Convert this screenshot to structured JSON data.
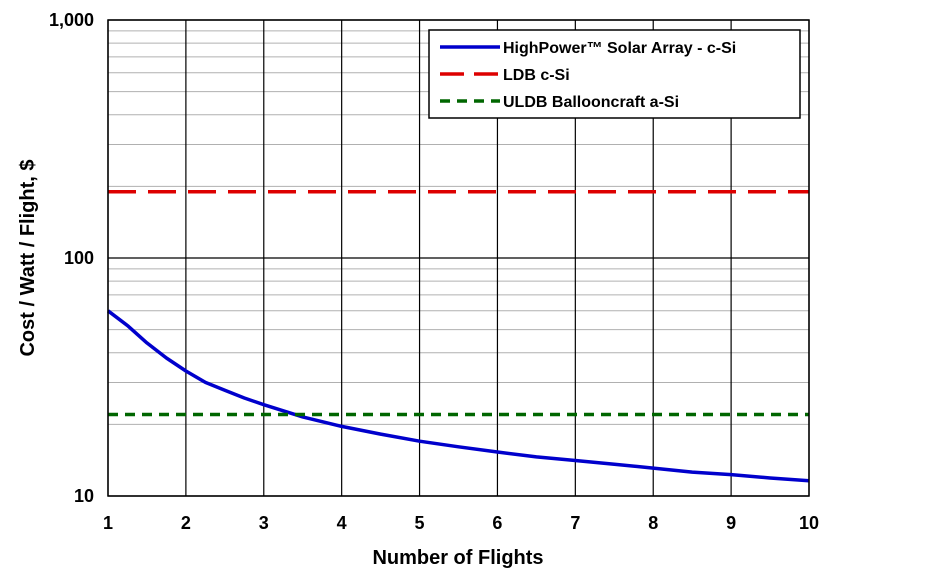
{
  "chart_data": {
    "type": "line",
    "xlabel": "Number of Flights",
    "ylabel": "Cost / Watt / Flight, $",
    "xlim": [
      1,
      10
    ],
    "ylim": [
      10,
      1000
    ],
    "yscale": "log",
    "grid": true,
    "legend_position": "top-right",
    "x_ticks": [
      1,
      2,
      3,
      4,
      5,
      6,
      7,
      8,
      9,
      10
    ],
    "x_tick_labels": [
      "1",
      "2",
      "3",
      "4",
      "5",
      "6",
      "7",
      "8",
      "9",
      "10"
    ],
    "y_ticks": [
      10,
      100,
      1000
    ],
    "y_tick_labels": [
      "10",
      "100",
      "1,000"
    ],
    "series": [
      {
        "name": "HighPower™ Solar Array - c-Si",
        "color": "#0000cc",
        "dash": "solid",
        "x": [
          1,
          1.25,
          1.5,
          1.75,
          2,
          2.25,
          2.5,
          2.75,
          3,
          3.5,
          4,
          4.5,
          5,
          5.5,
          6,
          6.5,
          7,
          7.5,
          8,
          8.5,
          9,
          9.5,
          10
        ],
        "y": [
          60,
          52,
          44,
          38,
          33.5,
          30,
          27.8,
          25.8,
          24.2,
          21.5,
          19.6,
          18.2,
          17,
          16.1,
          15.3,
          14.6,
          14.1,
          13.6,
          13.1,
          12.6,
          12.3,
          11.9,
          11.6
        ]
      },
      {
        "name": "LDB c-Si",
        "color": "#dd0000",
        "dash": "long-dash",
        "x": [
          1,
          10
        ],
        "y": [
          190,
          190
        ]
      },
      {
        "name": "ULDB Ballooncraft a-Si",
        "color": "#006600",
        "dash": "short-dash",
        "x": [
          1,
          10
        ],
        "y": [
          22,
          22
        ]
      }
    ]
  }
}
